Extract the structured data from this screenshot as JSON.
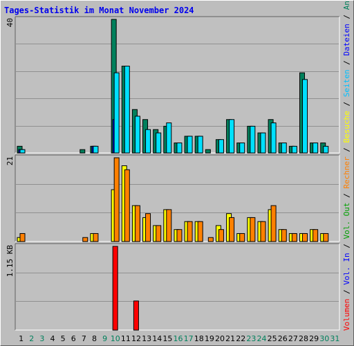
{
  "title": "Tages-Statistik im Monat November 2024",
  "colors": {
    "hits": "#00805c",
    "files": "#00c0ff",
    "pages": "#00e0ff",
    "visits": "#ffff00",
    "sites": "#ff8000",
    "kbytes": "#ff0000",
    "kbytes_in": "#0000ff",
    "kbytes_out": "#00a000",
    "weekend_label": "#00805c",
    "weekday_label": "#000000"
  },
  "legend": {
    "top": [
      {
        "text": "Anfragen",
        "color": "#00805c"
      },
      {
        "text": " / ",
        "color": "#000000"
      },
      {
        "text": "Dateien",
        "color": "#0000ff"
      },
      {
        "text": " / ",
        "color": "#000000"
      },
      {
        "text": "Seiten",
        "color": "#00c0ff"
      },
      {
        "text": " / ",
        "color": "#000000"
      },
      {
        "text": "Besuche",
        "color": "#ffff00"
      },
      {
        "text": " / ",
        "color": "#000000"
      },
      {
        "text": "Rechner",
        "color": "#ff8000"
      },
      {
        "text": " / ",
        "color": "#000000"
      },
      {
        "text": "Vol. Out",
        "color": "#00a000"
      },
      {
        "text": " / ",
        "color": "#000000"
      },
      {
        "text": "Vol. In",
        "color": "#0000ff"
      },
      {
        "text": " / ",
        "color": "#000000"
      },
      {
        "text": "Volumen",
        "color": "#ff0000"
      }
    ]
  },
  "chart_data": [
    {
      "type": "bar",
      "panel": "hits",
      "ymax_label": "40",
      "ylim": [
        0,
        40
      ],
      "categories": [
        "1",
        "2",
        "3",
        "4",
        "5",
        "6",
        "7",
        "8",
        "9",
        "10",
        "11",
        "12",
        "13",
        "14",
        "15",
        "16",
        "17",
        "18",
        "19",
        "20",
        "21",
        "22",
        "23",
        "24",
        "25",
        "26",
        "27",
        "28",
        "29",
        "30",
        "31"
      ],
      "weekend": [
        false,
        true,
        true,
        false,
        false,
        false,
        false,
        false,
        true,
        true,
        false,
        false,
        false,
        false,
        false,
        true,
        true,
        false,
        false,
        false,
        false,
        false,
        true,
        true,
        false,
        false,
        false,
        false,
        false,
        true,
        true
      ],
      "series": [
        {
          "name": "Anfragen",
          "values": [
            2,
            0,
            0,
            0,
            0,
            0,
            1,
            2,
            0,
            40,
            26,
            13,
            10,
            7,
            8,
            3,
            5,
            5,
            1,
            4,
            10,
            3,
            8,
            6,
            10,
            3,
            2,
            24,
            3,
            3,
            0
          ]
        },
        {
          "name": "Dateien",
          "values": [
            1,
            0,
            0,
            0,
            0,
            0,
            0,
            2,
            0,
            10,
            0,
            0,
            0,
            0,
            0,
            0,
            0,
            0,
            0,
            0,
            0,
            0,
            0,
            0,
            0,
            0,
            0,
            0,
            0,
            0,
            0
          ]
        },
        {
          "name": "Seiten",
          "values": [
            1,
            0,
            0,
            0,
            0,
            0,
            0,
            2,
            0,
            24,
            26,
            11,
            7,
            6,
            9,
            3,
            5,
            5,
            0,
            4,
            10,
            3,
            8,
            6,
            9,
            3,
            2,
            22,
            3,
            2,
            0
          ]
        }
      ]
    },
    {
      "type": "bar",
      "panel": "visits",
      "ymax_label": "21",
      "ylim": [
        0,
        21
      ],
      "categories": [
        "1",
        "2",
        "3",
        "4",
        "5",
        "6",
        "7",
        "8",
        "9",
        "10",
        "11",
        "12",
        "13",
        "14",
        "15",
        "16",
        "17",
        "18",
        "19",
        "20",
        "21",
        "22",
        "23",
        "24",
        "25",
        "26",
        "27",
        "28",
        "29",
        "30",
        "31"
      ],
      "series": [
        {
          "name": "Besuche",
          "values": [
            1,
            0,
            0,
            0,
            0,
            0,
            0,
            2,
            0,
            13,
            19,
            9,
            6,
            4,
            8,
            3,
            5,
            5,
            0,
            4,
            7,
            2,
            6,
            5,
            8,
            3,
            2,
            2,
            3,
            2,
            0
          ]
        },
        {
          "name": "Rechner",
          "values": [
            2,
            0,
            0,
            0,
            0,
            0,
            1,
            2,
            0,
            21,
            18,
            9,
            7,
            4,
            8,
            3,
            5,
            5,
            1,
            3,
            6,
            2,
            6,
            5,
            9,
            3,
            2,
            2,
            3,
            2,
            0
          ]
        }
      ]
    },
    {
      "type": "bar",
      "panel": "kbytes",
      "ymax_label": "1.15 KB",
      "ylim": [
        0,
        1.15
      ],
      "categories": [
        "1",
        "2",
        "3",
        "4",
        "5",
        "6",
        "7",
        "8",
        "9",
        "10",
        "11",
        "12",
        "13",
        "14",
        "15",
        "16",
        "17",
        "18",
        "19",
        "20",
        "21",
        "22",
        "23",
        "24",
        "25",
        "26",
        "27",
        "28",
        "29",
        "30",
        "31"
      ],
      "series": [
        {
          "name": "Volumen",
          "values": [
            0,
            0,
            0,
            0,
            0,
            0,
            0,
            0,
            0,
            1.15,
            0,
            0.4,
            0,
            0,
            0,
            0,
            0,
            0,
            0,
            0,
            0,
            0,
            0,
            0,
            0,
            0,
            0,
            0,
            0,
            0,
            0
          ]
        }
      ]
    }
  ]
}
